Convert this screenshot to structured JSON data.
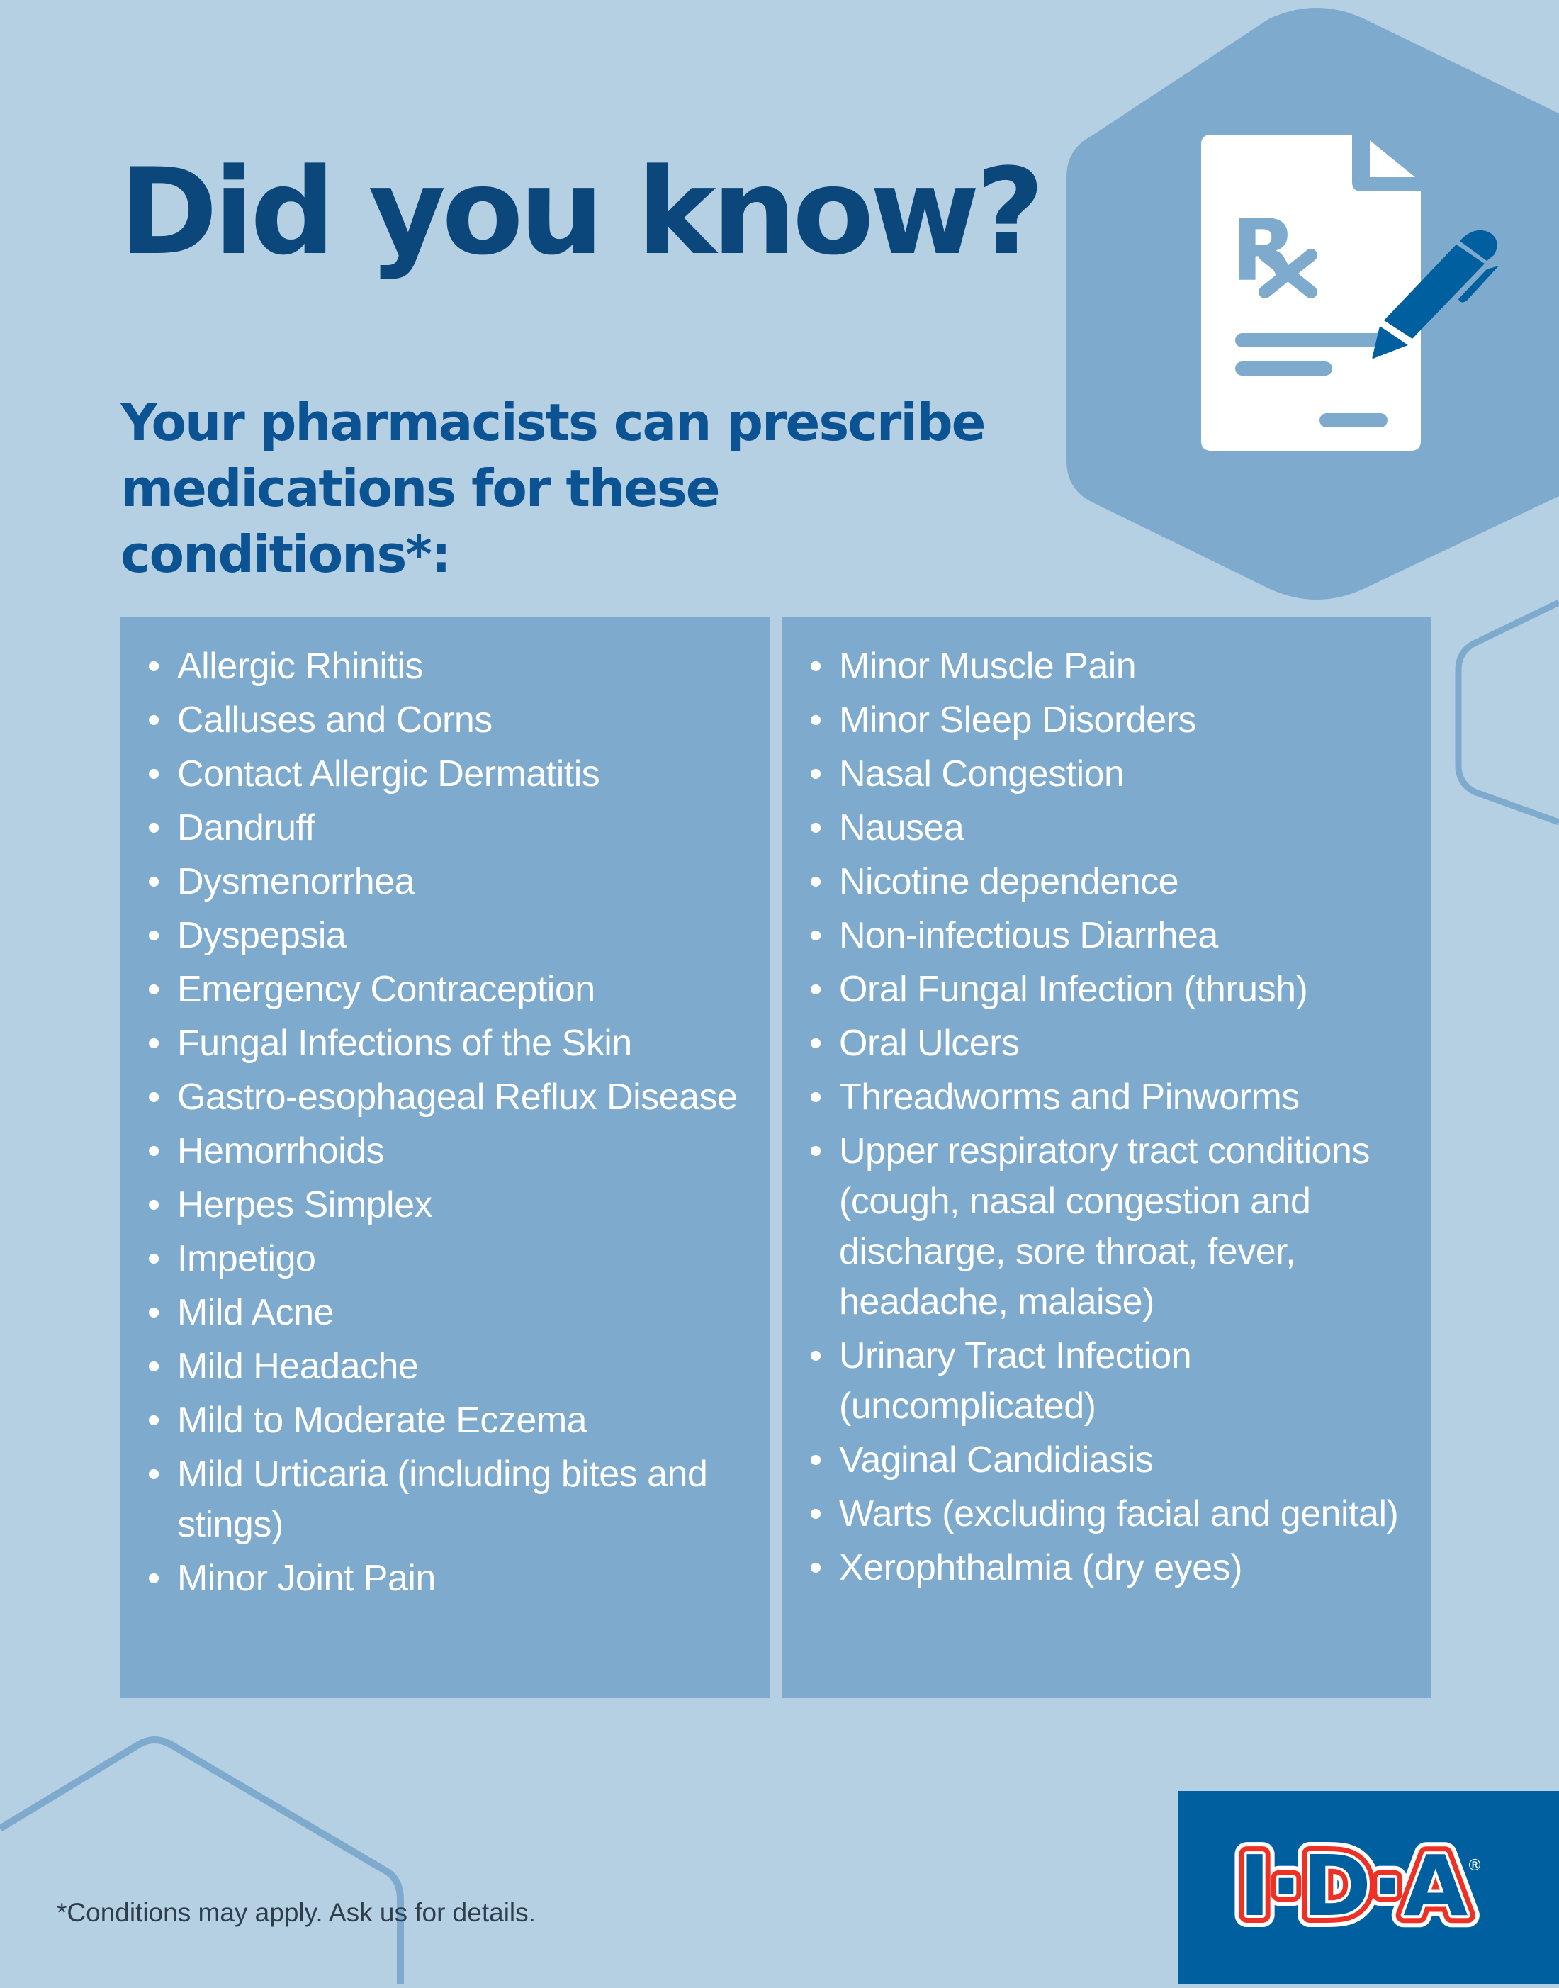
{
  "header": {
    "title": "Did you know?",
    "subtitle": "Your pharmacists can prescribe medications for these conditions*:"
  },
  "icons": {
    "hero": "prescription-pad-with-pen-icon"
  },
  "conditions": {
    "left": [
      "Allergic Rhinitis",
      "Calluses and Corns",
      "Contact Allergic Dermatitis",
      "Dandruff",
      "Dysmenorrhea",
      "Dyspepsia",
      "Emergency Contraception",
      "Fungal Infections of the Skin",
      "Gastro-esophageal Reflux Disease",
      "Hemorrhoids",
      "Herpes Simplex",
      "Impetigo",
      "Mild Acne",
      "Mild Headache",
      "Mild to Moderate Eczema",
      "Mild Urticaria (including bites and stings)",
      "Minor Joint Pain"
    ],
    "right": [
      "Minor Muscle Pain",
      "Minor Sleep Disorders",
      "Nasal Congestion",
      "Nausea",
      "Nicotine dependence",
      "Non-infectious Diarrhea",
      "Oral Fungal Infection (thrush)",
      "Oral Ulcers",
      "Threadworms and Pinworms",
      "Upper respiratory tract conditions (cough, nasal congestion and discharge, sore throat, fever, headache, malaise)",
      "Urinary Tract Infection (uncomplicated)",
      "Vaginal Candidiasis",
      "Warts (excluding facial and genital)",
      "Xerophthalmia (dry eyes)"
    ],
    "bullet": "•"
  },
  "footer": {
    "note": "*Conditions may apply. Ask us for details.",
    "logo_text": "I·D·A",
    "logo_registered": "®"
  },
  "colors": {
    "background": "#b5d0e3",
    "panel": "#7eaacd",
    "title": "#0c477c",
    "subtitle": "#0b5393",
    "brand_blue": "#005f9e",
    "brand_red": "#ee3124"
  }
}
